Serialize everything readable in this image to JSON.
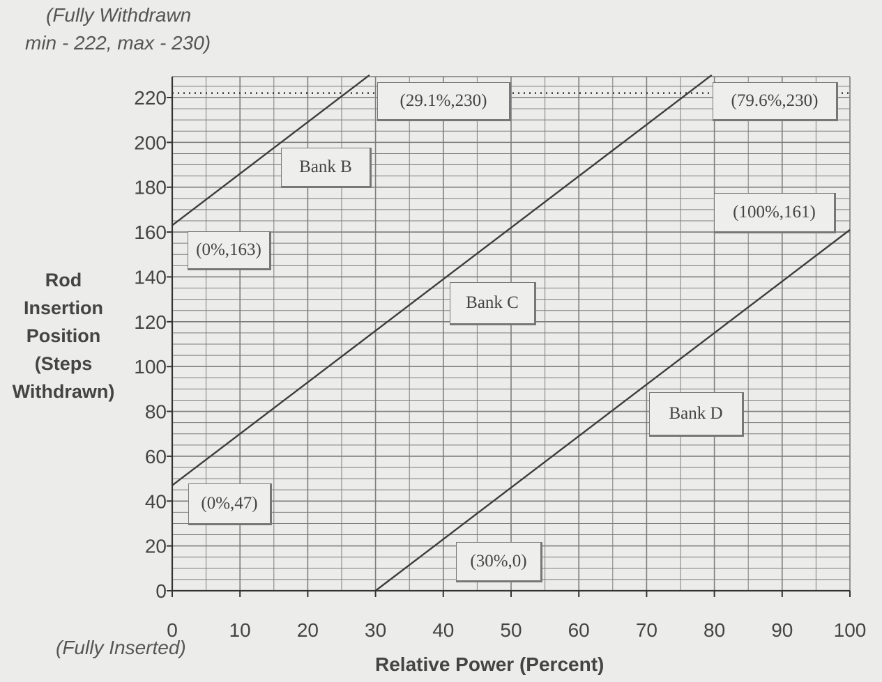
{
  "notes": {
    "top_line1": "(Fully Withdrawn",
    "top_line2": "min - 222, max - 230)",
    "bottom": "(Fully Inserted)"
  },
  "colors": {
    "grid": "#7d7d7d",
    "line": "#3d3d3d",
    "background": "#ececea"
  },
  "chart_data": {
    "type": "line",
    "xlabel": "Relative Power (Percent)",
    "ylabel_lines": [
      "Rod",
      "Insertion",
      "Position",
      "(Steps",
      "Withdrawn)"
    ],
    "xlim": [
      0,
      100
    ],
    "ylim": [
      0,
      230
    ],
    "xticks": [
      0,
      10,
      20,
      30,
      40,
      50,
      60,
      70,
      80,
      90,
      100
    ],
    "yticks": [
      0,
      20,
      40,
      60,
      80,
      100,
      120,
      140,
      160,
      180,
      200,
      220
    ],
    "grid": true,
    "reference_lines": [
      {
        "style": "dotted",
        "y": 222
      }
    ],
    "series": [
      {
        "name": "Bank B",
        "x": [
          0,
          29.1
        ],
        "y": [
          163,
          230
        ]
      },
      {
        "name": "Bank C",
        "x": [
          0,
          79.6
        ],
        "y": [
          47,
          230
        ]
      },
      {
        "name": "Bank D",
        "x": [
          30,
          100
        ],
        "y": [
          0,
          161
        ]
      }
    ],
    "annotations": [
      {
        "text": "(29.1%,230)"
      },
      {
        "text": "(79.6%,230)"
      },
      {
        "text": "(0%,163)"
      },
      {
        "text": "(100%,161)"
      },
      {
        "text": "(0%,47)"
      },
      {
        "text": "(30%,0)"
      },
      {
        "text": "Bank B"
      },
      {
        "text": "Bank C"
      },
      {
        "text": "Bank D"
      }
    ]
  }
}
